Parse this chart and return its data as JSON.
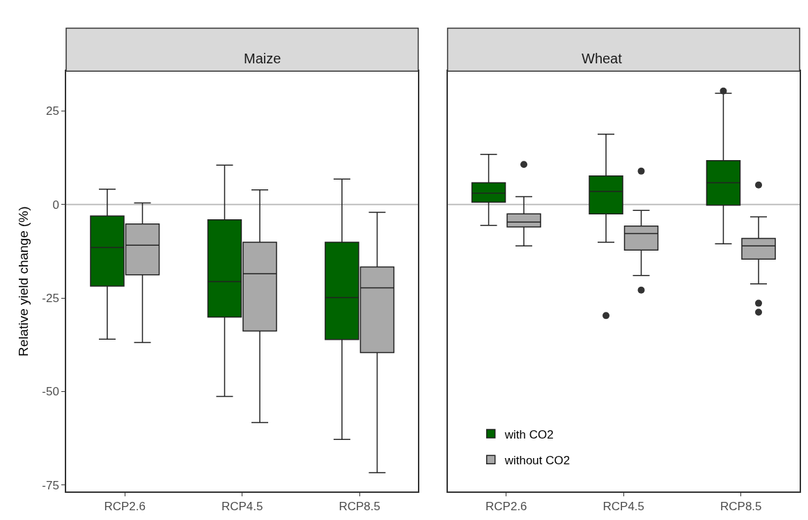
{
  "chart_data": [
    {
      "type": "box",
      "title": "Maize",
      "ylabel": "Relative yield change (%)",
      "categories": [
        "RCP2.6",
        "RCP4.5",
        "RCP8.5"
      ],
      "ylim": [
        -76.7,
        35.6
      ],
      "yticks": [
        {
          "value": 25,
          "label": "25"
        },
        {
          "value": 0,
          "label": "0"
        },
        {
          "value": -25,
          "label": "-25"
        },
        {
          "value": -50,
          "label": "-50"
        },
        {
          "value": -75,
          "label": "-75"
        }
      ],
      "grid": false,
      "ref_lines": [
        {
          "axis": "y",
          "value": 0,
          "label": null,
          "color": "#bebebe"
        }
      ],
      "series": [
        {
          "color": "#006400",
          "boxes": [
            {
              "low": -36,
              "q1": -21.8,
              "median": -11.5,
              "q3": -3.1,
              "high": 4.1
            },
            {
              "low": -51.3,
              "q1": -30.1,
              "median": -20.6,
              "q3": -4.1,
              "high": 10.5
            },
            {
              "low": -62.8,
              "q1": -36.1,
              "median": -24.9,
              "q3": -10.1,
              "high": 6.8
            }
          ]
        },
        {
          "color": "#a9a9a9",
          "boxes": [
            {
              "low": -36.9,
              "q1": -18.8,
              "median": -10.9,
              "q3": -5.2,
              "high": 0.4
            },
            {
              "low": -58.3,
              "q1": -33.8,
              "median": -18.5,
              "q3": -10.1,
              "high": 3.9
            },
            {
              "low": -71.7,
              "q1": -39.6,
              "median": -22.3,
              "q3": -16.7,
              "high": -2.1
            }
          ]
        }
      ]
    },
    {
      "type": "box",
      "title": "Wheat",
      "categories": [
        "RCP2.6",
        "RCP4.5",
        "RCP8.5"
      ],
      "ylim": [
        -76.7,
        35.6
      ],
      "tick_labels": "x",
      "grid": false,
      "legend": "bottom left",
      "ref_lines": [
        {
          "axis": "y",
          "value": 0,
          "label": null,
          "color": "#bebebe"
        }
      ],
      "series": [
        {
          "name": "with CO2",
          "color": "#006400",
          "boxes": [
            {
              "low": -5.6,
              "q1": 0.6,
              "median": 3,
              "q3": 5.8,
              "high": 13.4
            },
            {
              "low": -10.1,
              "q1": -2.5,
              "median": 3.5,
              "q3": 7.6,
              "high": 18.8,
              "outliers": [
                -29.7
              ]
            },
            {
              "low": -10.5,
              "q1": -0.2,
              "median": 5.8,
              "q3": 11.7,
              "high": 29.7,
              "outliers": [
                30.3
              ]
            }
          ]
        },
        {
          "name": "without CO2",
          "color": "#a9a9a9",
          "boxes": [
            {
              "low": -11.1,
              "q1": -6.0,
              "median": -4.7,
              "q3": -2.5,
              "high": 2.1,
              "outliers": [
                10.7
              ]
            },
            {
              "low": -19.0,
              "q1": -12.2,
              "median": -7.8,
              "q3": -5.8,
              "high": -1.6,
              "outliers": [
                8.9,
                -22.9
              ]
            },
            {
              "low": -21.2,
              "q1": -14.6,
              "median": -11.1,
              "q3": -9.1,
              "high": -3.3,
              "outliers": [
                5.2,
                -26.4,
                -28.8
              ]
            }
          ]
        }
      ]
    }
  ]
}
